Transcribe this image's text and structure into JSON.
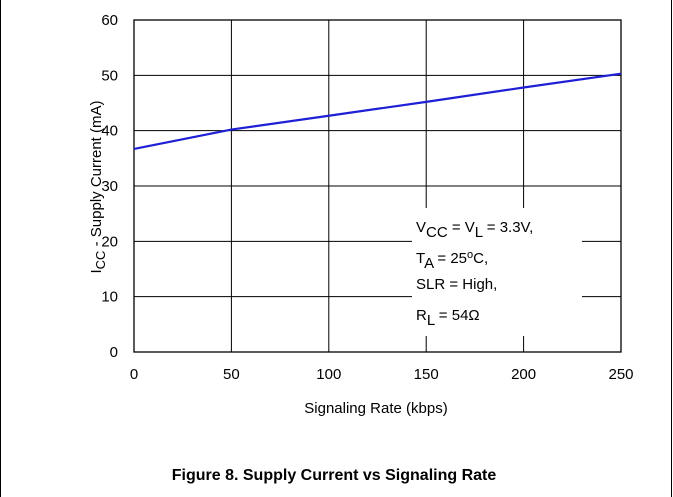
{
  "chart_data": {
    "type": "line",
    "x": [
      0,
      50,
      100,
      150,
      200,
      250
    ],
    "series": [
      {
        "values": [
          36.7,
          40.2,
          42.7,
          45.2,
          47.8,
          50.3
        ],
        "color": "#1f1fd6"
      }
    ],
    "xlim": [
      0,
      250
    ],
    "ylim": [
      0,
      60
    ],
    "xticks": [
      "0",
      "50",
      "100",
      "150",
      "200",
      "250"
    ],
    "yticks": [
      "0",
      "10",
      "20",
      "30",
      "40",
      "50",
      "60"
    ],
    "xlabel": "Signaling Rate (kbps)",
    "ylabel": {
      "main": "I",
      "sub": "CC",
      "rest": " - Supply Current (mA)"
    },
    "grid": true,
    "annotation": {
      "line1": {
        "a": "V",
        "a_sub": "CC",
        "b": " = V",
        "b_sub": "L",
        "c": " = 3.3V,"
      },
      "line2": {
        "a": "T",
        "a_sub": "A",
        "b": " = 25",
        "deg": "o",
        "c": "C,"
      },
      "line3": "SLR = High,",
      "line4": {
        "a": "R",
        "a_sub": "L",
        "b": " = 54Ω"
      }
    }
  },
  "caption": "Figure 8. Supply Current vs Signaling Rate"
}
